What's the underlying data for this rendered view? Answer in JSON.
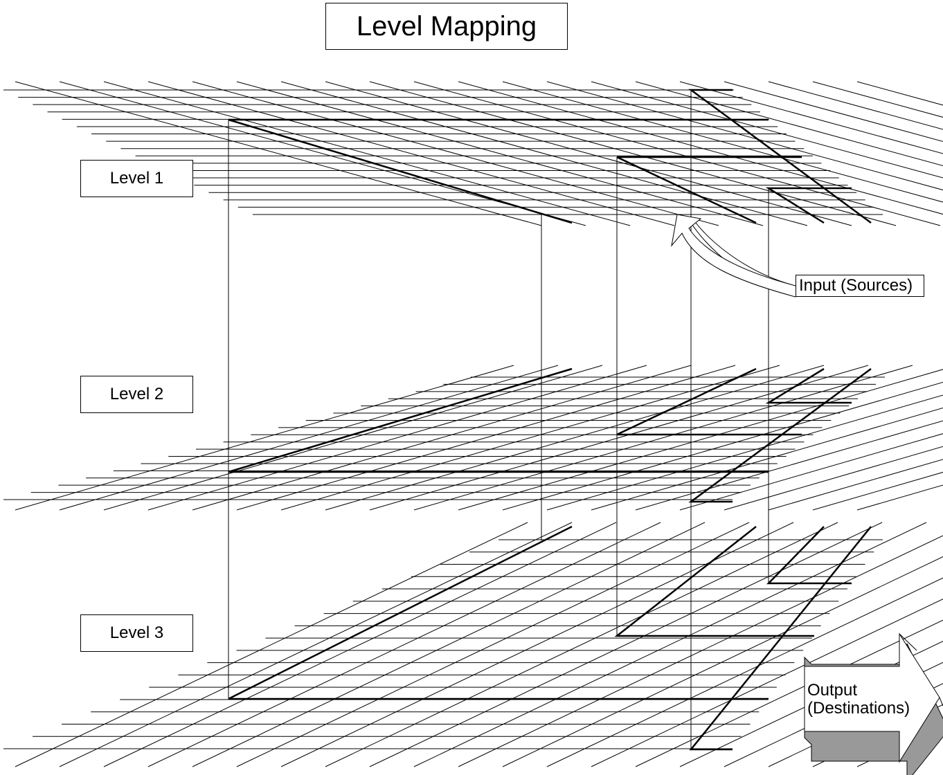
{
  "title": "Level Mapping",
  "levels": [
    {
      "label": "Level 1"
    },
    {
      "label": "Level 2"
    },
    {
      "label": "Level 3"
    }
  ],
  "input_label": "Input (Sources)",
  "output_label_line1": "Output",
  "output_label_line2": "(Destinations)",
  "colors": {
    "line": "#000000",
    "arrow_face": "#ffffff",
    "arrow_shadow": "#999999"
  }
}
